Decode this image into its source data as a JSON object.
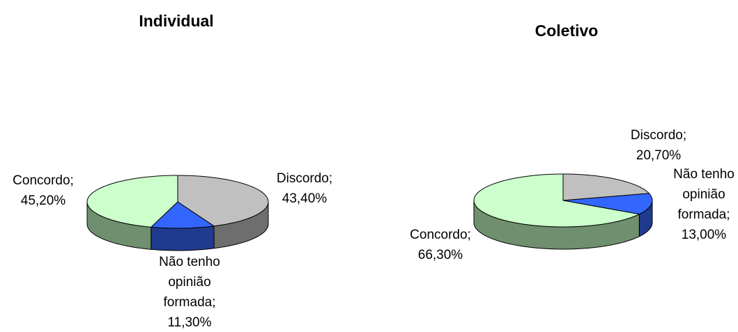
{
  "chart_data": [
    {
      "type": "pie3d",
      "title": "Individual",
      "categories": [
        "Discordo;",
        "Não tenho opinião formada;",
        "Concordo;"
      ],
      "values": [
        43.4,
        11.3,
        45.2
      ],
      "value_labels": [
        "43,40%",
        "11,30%",
        "45,20%"
      ],
      "colors": [
        "#c0c0c0",
        "#3366ff",
        "#ccffcc"
      ],
      "side_colors": [
        "#6e6e6e",
        "#1f3a8f",
        "#6f8f6f"
      ]
    },
    {
      "type": "pie3d",
      "title": "Coletivo",
      "categories": [
        "Discordo;",
        "Não tenho opinião formada;",
        "Concordo;"
      ],
      "values": [
        20.7,
        13.0,
        66.3
      ],
      "value_labels": [
        "20,70%",
        "13,00%",
        "66,30%"
      ],
      "colors": [
        "#c0c0c0",
        "#3366ff",
        "#ccffcc"
      ],
      "side_colors": [
        "#6e6e6e",
        "#1f3a8f",
        "#6f8f6f"
      ]
    }
  ]
}
